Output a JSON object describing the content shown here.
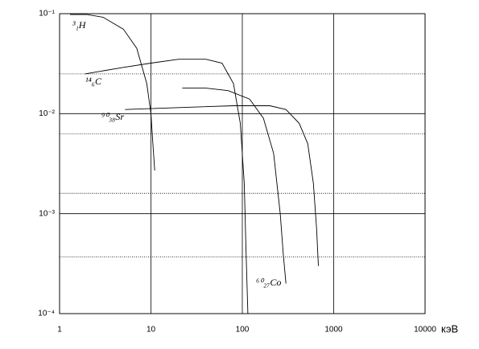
{
  "chart_data": {
    "type": "line",
    "x_label": "кэВ",
    "xscale": "log",
    "yscale": "log",
    "grid": true,
    "xlim": [
      1,
      10000
    ],
    "xticks": [
      1,
      10,
      100,
      1000,
      10000
    ],
    "ylim": [
      0.0001,
      0.1
    ],
    "yticks": [
      {
        "value": 0.1,
        "label": "10⁻¹"
      },
      {
        "value": 0.01,
        "label": "10⁻²"
      },
      {
        "value": 0.001,
        "label": "10⁻³"
      },
      {
        "value": 0.0001,
        "label": "10⁻⁴"
      }
    ],
    "ygrid_minor": [
      0.025,
      0.0063,
      0.0016,
      0.00037
    ],
    "series": [
      {
        "name": "³₁H",
        "color": "#000000",
        "x": [
          1.3,
          2,
          3,
          5,
          7,
          9,
          10,
          10.5,
          11
        ],
        "values": [
          0.098,
          0.098,
          0.092,
          0.07,
          0.045,
          0.02,
          0.01,
          0.005,
          0.0027
        ]
      },
      {
        "name": "¹⁴₆C",
        "color": "#000000",
        "x": [
          1.9,
          5,
          10,
          20,
          40,
          60,
          80,
          95,
          105,
          110,
          115
        ],
        "values": [
          0.025,
          0.029,
          0.032,
          0.035,
          0.035,
          0.032,
          0.02,
          0.008,
          0.002,
          0.0004,
          0.0001
        ]
      },
      {
        "name": "⁹⁰₃₈Sr",
        "color": "#000000",
        "x": [
          5.2,
          20,
          80,
          200,
          300,
          420,
          520,
          600,
          650,
          680
        ],
        "values": [
          0.011,
          0.0115,
          0.012,
          0.012,
          0.011,
          0.008,
          0.005,
          0.002,
          0.0007,
          0.0003
        ]
      },
      {
        "name": "⁶⁰₂₇Co",
        "color": "#000000",
        "x": [
          22,
          40,
          70,
          120,
          170,
          220,
          260,
          280,
          300
        ],
        "values": [
          0.018,
          0.018,
          0.017,
          0.014,
          0.009,
          0.004,
          0.001,
          0.0004,
          0.0002
        ]
      }
    ]
  }
}
